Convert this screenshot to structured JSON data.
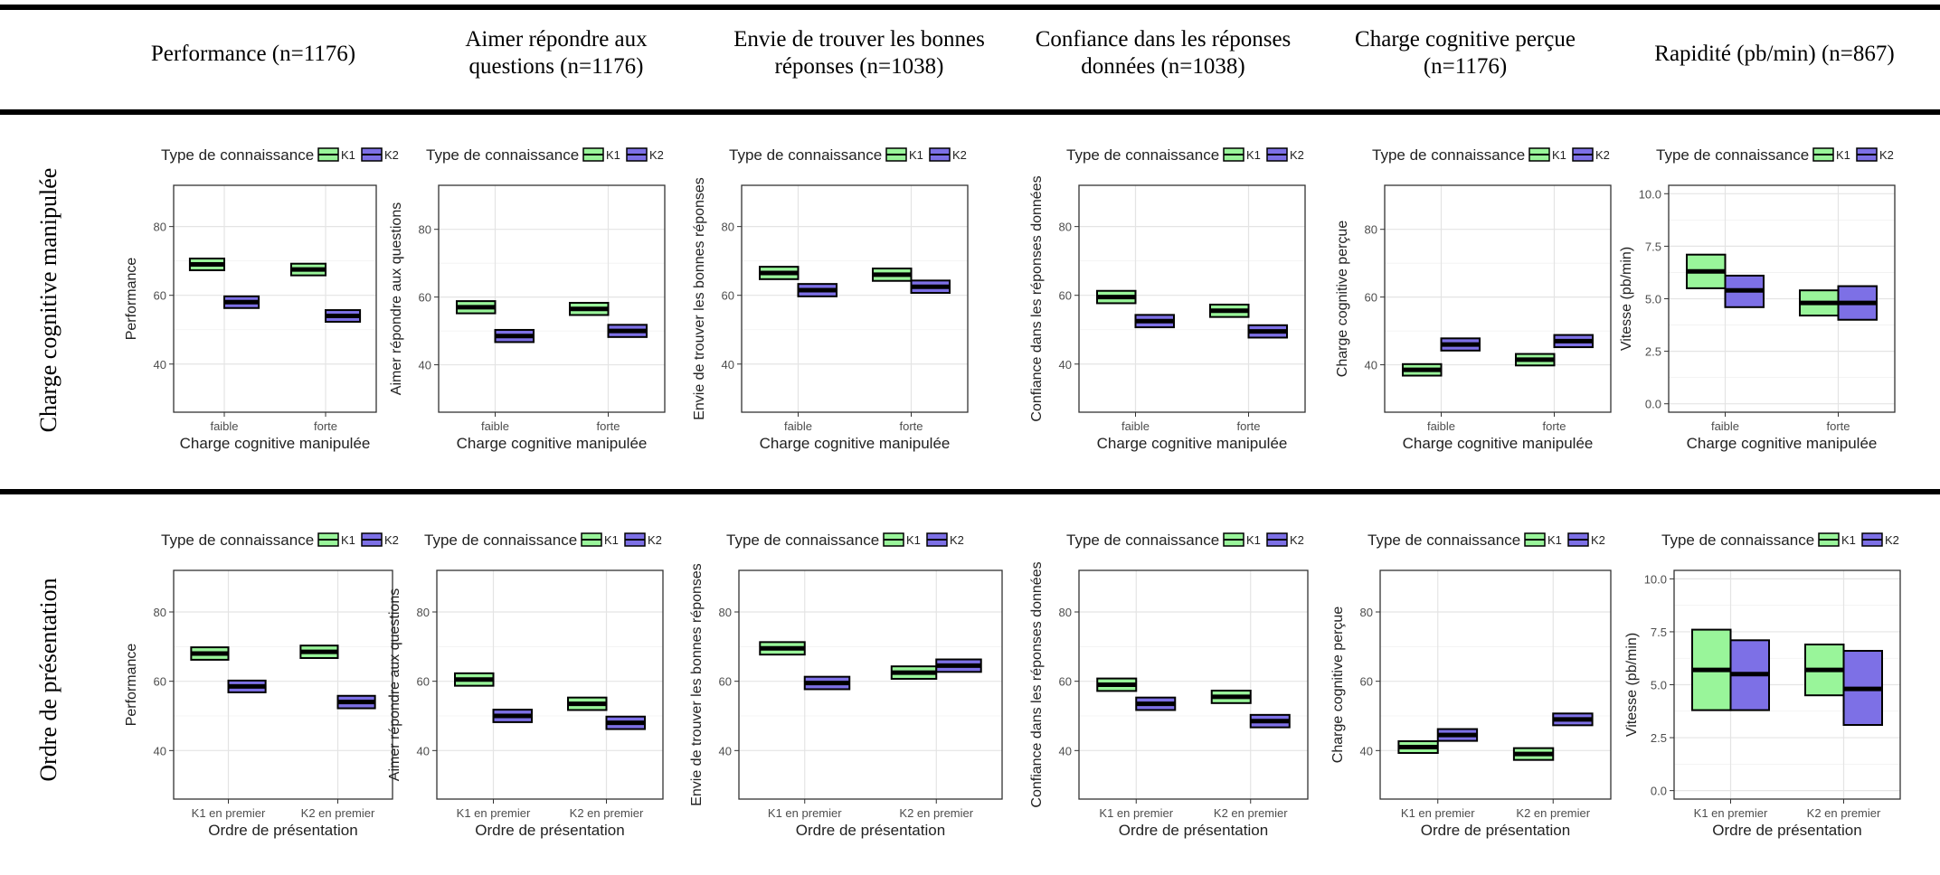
{
  "column_headers": [
    "Performance (n=1176)",
    "Aimer répondre aux questions (n=1176)",
    "Envie de trouver les bonnes réponses (n=1038)",
    "Confiance dans les réponses données (n=1038)",
    "Charge cognitive perçue (n=1176)",
    "Rapidité (pb/min) (n=867)"
  ],
  "row_headers": [
    "Charge cognitive manipulée",
    "Ordre de présentation"
  ],
  "legend": {
    "title": "Type de connaissance",
    "items": [
      "K1",
      "K2"
    ]
  },
  "colors": {
    "K1": "#99f59a",
    "K2": "#7d70e6",
    "median": "#000000",
    "rule": "#000000",
    "grid": "#e4e4e4",
    "panel_border": "#333333",
    "text": "#4d4d4d",
    "axis_title": "#222222"
  },
  "chart_data": [
    {
      "type": "crossbar",
      "row": 0,
      "col": 0,
      "ylabel": "Performance",
      "xlabel": "Charge cognitive manipulée",
      "categories": [
        "faible",
        "forte"
      ],
      "ylim": [
        26,
        92
      ],
      "yticks": [
        40,
        60,
        80
      ],
      "series": [
        {
          "name": "K1",
          "mid": [
            69,
            67.5
          ],
          "low": [
            67.3,
            65.8
          ],
          "high": [
            70.7,
            69.2
          ]
        },
        {
          "name": "K2",
          "mid": [
            58,
            54
          ],
          "low": [
            56.3,
            52.3
          ],
          "high": [
            59.7,
            55.7
          ]
        }
      ]
    },
    {
      "type": "crossbar",
      "row": 0,
      "col": 1,
      "ylabel": "Aimer répondre aux questions",
      "xlabel": "Charge cognitive manipulée",
      "categories": [
        "faible",
        "forte"
      ],
      "ylim": [
        26,
        93
      ],
      "yticks": [
        40,
        60,
        80
      ],
      "series": [
        {
          "name": "K1",
          "mid": [
            57,
            56.5
          ],
          "low": [
            55.2,
            54.7
          ],
          "high": [
            58.8,
            58.3
          ]
        },
        {
          "name": "K2",
          "mid": [
            48.5,
            50
          ],
          "low": [
            46.7,
            48.2
          ],
          "high": [
            50.3,
            51.8
          ]
        }
      ]
    },
    {
      "type": "crossbar",
      "row": 0,
      "col": 2,
      "ylabel": "Envie de trouver les bonnes réponses",
      "xlabel": "Charge cognitive manipulée",
      "categories": [
        "faible",
        "forte"
      ],
      "ylim": [
        26,
        92
      ],
      "yticks": [
        40,
        60,
        80
      ],
      "series": [
        {
          "name": "K1",
          "mid": [
            66.5,
            66
          ],
          "low": [
            64.7,
            64.2
          ],
          "high": [
            68.3,
            67.8
          ]
        },
        {
          "name": "K2",
          "mid": [
            61.5,
            62.5
          ],
          "low": [
            59.7,
            60.7
          ],
          "high": [
            63.3,
            64.3
          ]
        }
      ]
    },
    {
      "type": "crossbar",
      "row": 0,
      "col": 3,
      "ylabel": "Confiance dans les réponses données",
      "xlabel": "Charge cognitive manipulée",
      "categories": [
        "faible",
        "forte"
      ],
      "ylim": [
        26,
        92
      ],
      "yticks": [
        40,
        60,
        80
      ],
      "series": [
        {
          "name": "K1",
          "mid": [
            59.5,
            55.5
          ],
          "low": [
            57.7,
            53.7
          ],
          "high": [
            61.3,
            57.3
          ]
        },
        {
          "name": "K2",
          "mid": [
            52.5,
            49.5
          ],
          "low": [
            50.7,
            47.7
          ],
          "high": [
            54.3,
            51.3
          ]
        }
      ]
    },
    {
      "type": "crossbar",
      "row": 0,
      "col": 4,
      "ylabel": "Charge cognitive perçue",
      "xlabel": "Charge cognitive manipulée",
      "categories": [
        "faible",
        "forte"
      ],
      "ylim": [
        26,
        93
      ],
      "yticks": [
        40,
        60,
        80
      ],
      "series": [
        {
          "name": "K1",
          "mid": [
            38.5,
            41.5
          ],
          "low": [
            36.8,
            39.8
          ],
          "high": [
            40.2,
            43.2
          ]
        },
        {
          "name": "K2",
          "mid": [
            46,
            47
          ],
          "low": [
            44.2,
            45.2
          ],
          "high": [
            47.8,
            48.8
          ]
        }
      ]
    },
    {
      "type": "crossbar",
      "row": 0,
      "col": 5,
      "ylabel": "Vitesse (pb/min)",
      "xlabel": "Charge cognitive manipulée",
      "categories": [
        "faible",
        "forte"
      ],
      "ylim": [
        -0.4,
        10.4
      ],
      "yticks": [
        0,
        2.5,
        5,
        7.5,
        10
      ],
      "ytick_labels": [
        "0.0",
        "2.5",
        "5.0",
        "7.5",
        "10.0"
      ],
      "series": [
        {
          "name": "K1",
          "mid": [
            6.3,
            4.8
          ],
          "low": [
            5.5,
            4.2
          ],
          "high": [
            7.1,
            5.4
          ]
        },
        {
          "name": "K2",
          "mid": [
            5.4,
            4.8
          ],
          "low": [
            4.6,
            4.0
          ],
          "high": [
            6.1,
            5.6
          ]
        }
      ]
    },
    {
      "type": "crossbar",
      "row": 1,
      "col": 0,
      "ylabel": "Performance",
      "xlabel": "Ordre de présentation",
      "categories": [
        "K1 en premier",
        "K2 en premier"
      ],
      "ylim": [
        26,
        92
      ],
      "yticks": [
        40,
        60,
        80
      ],
      "series": [
        {
          "name": "K1",
          "mid": [
            68,
            68.5
          ],
          "low": [
            66.2,
            66.7
          ],
          "high": [
            69.8,
            70.3
          ]
        },
        {
          "name": "K2",
          "mid": [
            58.5,
            54
          ],
          "low": [
            56.8,
            52.2
          ],
          "high": [
            60.2,
            55.8
          ]
        }
      ]
    },
    {
      "type": "crossbar",
      "row": 1,
      "col": 1,
      "ylabel": "Aimer répondre aux questions",
      "xlabel": "Ordre de présentation",
      "categories": [
        "K1 en premier",
        "K2 en premier"
      ],
      "ylim": [
        26,
        92
      ],
      "yticks": [
        40,
        60,
        80
      ],
      "series": [
        {
          "name": "K1",
          "mid": [
            60.5,
            53.5
          ],
          "low": [
            58.7,
            51.7
          ],
          "high": [
            62.3,
            55.3
          ]
        },
        {
          "name": "K2",
          "mid": [
            50,
            48
          ],
          "low": [
            48.2,
            46.2
          ],
          "high": [
            51.8,
            49.8
          ]
        }
      ]
    },
    {
      "type": "crossbar",
      "row": 1,
      "col": 2,
      "ylabel": "Envie de trouver les bonnes réponses",
      "xlabel": "Ordre de présentation",
      "categories": [
        "K1 en premier",
        "K2 en premier"
      ],
      "ylim": [
        26,
        92
      ],
      "yticks": [
        40,
        60,
        80
      ],
      "series": [
        {
          "name": "K1",
          "mid": [
            69.5,
            62.5
          ],
          "low": [
            67.7,
            60.7
          ],
          "high": [
            71.3,
            64.3
          ]
        },
        {
          "name": "K2",
          "mid": [
            59.5,
            64.5
          ],
          "low": [
            57.7,
            62.7
          ],
          "high": [
            61.3,
            66.3
          ]
        }
      ]
    },
    {
      "type": "crossbar",
      "row": 1,
      "col": 3,
      "ylabel": "Confiance dans les réponses données",
      "xlabel": "Ordre de présentation",
      "categories": [
        "K1 en premier",
        "K2 en premier"
      ],
      "ylim": [
        26,
        92
      ],
      "yticks": [
        40,
        60,
        80
      ],
      "series": [
        {
          "name": "K1",
          "mid": [
            59,
            55.5
          ],
          "low": [
            57.2,
            53.7
          ],
          "high": [
            60.8,
            57.3
          ]
        },
        {
          "name": "K2",
          "mid": [
            53.5,
            48.5
          ],
          "low": [
            51.7,
            46.7
          ],
          "high": [
            55.3,
            50.3
          ]
        }
      ]
    },
    {
      "type": "crossbar",
      "row": 1,
      "col": 4,
      "ylabel": "Charge cognitive perçue",
      "xlabel": "Ordre de présentation",
      "categories": [
        "K1 en premier",
        "K2 en premier"
      ],
      "ylim": [
        26,
        92
      ],
      "yticks": [
        40,
        60,
        80
      ],
      "series": [
        {
          "name": "K1",
          "mid": [
            41,
            39
          ],
          "low": [
            39.3,
            37.3
          ],
          "high": [
            42.7,
            40.7
          ]
        },
        {
          "name": "K2",
          "mid": [
            44.5,
            49
          ],
          "low": [
            42.8,
            47.3
          ],
          "high": [
            46.2,
            50.7
          ]
        }
      ]
    },
    {
      "type": "crossbar",
      "row": 1,
      "col": 5,
      "ylabel": "Vitesse (pb/min)",
      "xlabel": "Ordre de présentation",
      "categories": [
        "K1 en premier",
        "K2 en premier"
      ],
      "ylim": [
        -0.4,
        10.4
      ],
      "yticks": [
        0,
        2.5,
        5,
        7.5,
        10
      ],
      "ytick_labels": [
        "0.0",
        "2.5",
        "5.0",
        "7.5",
        "10.0"
      ],
      "series": [
        {
          "name": "K1",
          "mid": [
            5.7,
            5.7
          ],
          "low": [
            3.8,
            4.5
          ],
          "high": [
            7.6,
            6.9
          ]
        },
        {
          "name": "K2",
          "mid": [
            5.5,
            4.8
          ],
          "low": [
            3.8,
            3.1
          ],
          "high": [
            7.1,
            6.6
          ]
        }
      ]
    }
  ]
}
